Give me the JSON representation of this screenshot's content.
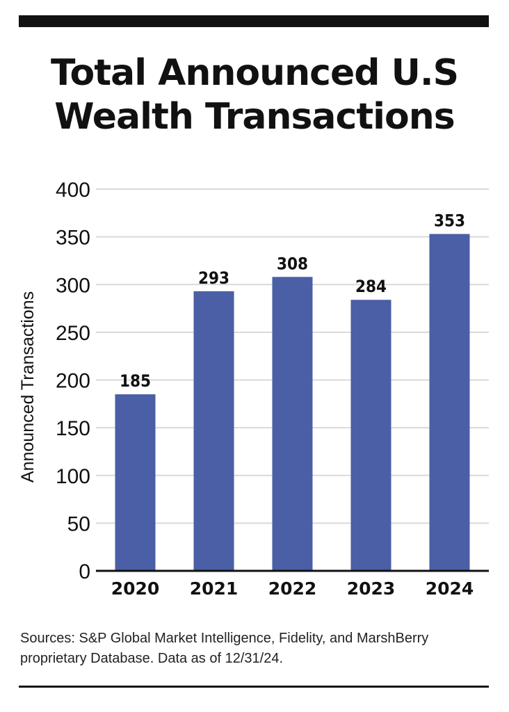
{
  "title_lines": [
    "Total Announced U.S",
    "Wealth Transactions"
  ],
  "source_text": "Sources: S&P Global Market Intelligence, Fidelity, and MarshBerry proprietary Database. Data as of 12/31/24.",
  "colors": {
    "bar": "#4a5fa5",
    "grid": "#d9d9d9",
    "axis": "#111111",
    "text": "#111111"
  },
  "chart_data": {
    "type": "bar",
    "title": "Total Announced U.S Wealth Transactions",
    "xlabel": "",
    "ylabel": "Announced Transactions",
    "categories": [
      "2020",
      "2021",
      "2022",
      "2023",
      "2024"
    ],
    "values": [
      185,
      293,
      308,
      284,
      353
    ],
    "ylim": [
      0,
      400
    ],
    "yticks": [
      0,
      50,
      100,
      150,
      200,
      250,
      300,
      350,
      400
    ],
    "grid": true,
    "data_labels": true
  }
}
